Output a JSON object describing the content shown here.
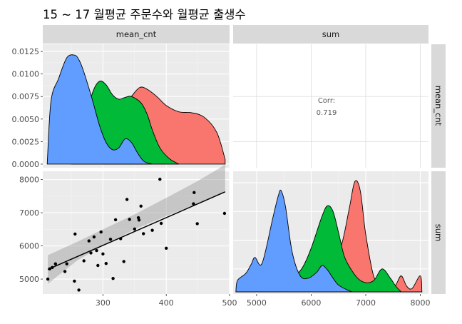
{
  "figure": {
    "title": "15 ~ 17 월평균 주문수와 월평균 출생수"
  },
  "chart_data": {
    "type": "scatter-matrix",
    "variables": [
      "mean_cnt",
      "sum"
    ],
    "fill_colors": {
      "red": "#F8766D",
      "green": "#00BA38",
      "blue": "#619CFF"
    },
    "panel_background": "#EBEBEB",
    "strip_background": "#D9D9D9",
    "grid": true,
    "density_mean_cnt": {
      "ylim": [
        -0.0004,
        0.0133
      ],
      "yticks": [
        "0.0000",
        "0.0025",
        "0.0050",
        "0.0075",
        "0.0100",
        "0.0125"
      ],
      "series": [
        {
          "color": "red",
          "x": [
            300,
            315,
            330,
            345,
            358,
            370,
            385,
            400,
            420,
            440,
            460,
            480,
            493
          ],
          "y": [
            0,
            0.003,
            0.006,
            0.0075,
            0.0085,
            0.0083,
            0.0075,
            0.0065,
            0.0058,
            0.0057,
            0.0052,
            0.0035,
            0.0005
          ]
        },
        {
          "color": "green",
          "x": [
            250,
            262,
            275,
            285,
            295,
            305,
            315,
            325,
            335,
            345,
            360,
            370,
            378,
            390,
            405,
            420
          ],
          "y": [
            0,
            0.0025,
            0.0058,
            0.0082,
            0.0092,
            0.0088,
            0.0077,
            0.0072,
            0.0074,
            0.0075,
            0.0068,
            0.0055,
            0.0038,
            0.0018,
            0.0006,
            0
          ]
        },
        {
          "color": "blue",
          "x": [
            212,
            218,
            230,
            243,
            255,
            262,
            270,
            283,
            295,
            305,
            315,
            325,
            335,
            345,
            355,
            365,
            378
          ],
          "y": [
            0,
            0.007,
            0.0095,
            0.0118,
            0.0121,
            0.0116,
            0.0102,
            0.0072,
            0.0042,
            0.0024,
            0.0016,
            0.0018,
            0.0028,
            0.0024,
            0.0012,
            0.0003,
            0
          ]
        }
      ]
    },
    "correlation": {
      "label": "Corr:",
      "value": "0.719"
    },
    "scatter": {
      "xlim": [
        205,
        500
      ],
      "ylim": [
        4550,
        8250
      ],
      "xticks": [
        300,
        400,
        500
      ],
      "yticks": [
        5000,
        6000,
        7000,
        8000
      ],
      "points": [
        [
          213,
          5000
        ],
        [
          216,
          5310
        ],
        [
          220,
          5350
        ],
        [
          225,
          5460
        ],
        [
          240,
          5230
        ],
        [
          243,
          5460
        ],
        [
          255,
          4940
        ],
        [
          256,
          6360
        ],
        [
          262,
          4670
        ],
        [
          270,
          5550
        ],
        [
          278,
          6150
        ],
        [
          281,
          5790
        ],
        [
          286,
          6270
        ],
        [
          290,
          5860
        ],
        [
          292,
          5410
        ],
        [
          297,
          6420
        ],
        [
          300,
          5760
        ],
        [
          305,
          5470
        ],
        [
          312,
          6200
        ],
        [
          316,
          5020
        ],
        [
          320,
          6790
        ],
        [
          328,
          6220
        ],
        [
          333,
          5530
        ],
        [
          338,
          7400
        ],
        [
          342,
          6800
        ],
        [
          350,
          6510
        ],
        [
          356,
          6850
        ],
        [
          357,
          6780
        ],
        [
          360,
          7200
        ],
        [
          364,
          6370
        ],
        [
          378,
          6470
        ],
        [
          390,
          8010
        ],
        [
          392,
          6680
        ],
        [
          400,
          5930
        ],
        [
          444,
          7610
        ],
        [
          443,
          7270
        ],
        [
          449,
          6670
        ],
        [
          492,
          6980
        ]
      ],
      "fit_line": {
        "x": [
          213,
          493
        ],
        "y": [
          5290,
          7630
        ]
      },
      "confidence_band": {
        "x": [
          213,
          260,
          300,
          350,
          400,
          450,
          493
        ],
        "upper": [
          5720,
          6130,
          6500,
          6950,
          7450,
          7960,
          8450
        ],
        "lower": [
          4860,
          5570,
          6010,
          6500,
          6900,
          7290,
          7620
        ]
      }
    },
    "density_sum": {
      "xlim": [
        4570,
        8150
      ],
      "xticks": [
        5000,
        6000,
        7000,
        8000
      ],
      "series": [
        {
          "color": "red",
          "x": [
            5800,
            6100,
            6350,
            6550,
            6700,
            6800,
            6900,
            7000,
            7150,
            7300,
            7450,
            7550,
            7650,
            7750,
            7850,
            8000,
            8030
          ],
          "y": [
            0,
            0.1,
            0.23,
            0.4,
            0.73,
            0.96,
            0.88,
            0.5,
            0.13,
            0.08,
            0.04,
            0.06,
            0.14,
            0.05,
            0.03,
            0.14,
            0
          ]
        },
        {
          "color": "green",
          "x": [
            5200,
            5550,
            5700,
            5850,
            6000,
            6200,
            6300,
            6400,
            6500,
            6600,
            6700,
            6850,
            7000,
            7150,
            7300,
            7450,
            7550,
            7650
          ],
          "y": [
            0,
            0.05,
            0.13,
            0.22,
            0.38,
            0.66,
            0.75,
            0.7,
            0.52,
            0.32,
            0.22,
            0.12,
            0.08,
            0.1,
            0.2,
            0.12,
            0.05,
            0
          ]
        },
        {
          "color": "blue",
          "x": [
            4620,
            4650,
            4800,
            4900,
            4970,
            5100,
            5300,
            5400,
            5450,
            5530,
            5650,
            5800,
            5950,
            6100,
            6200,
            6300,
            6400,
            6500,
            6650,
            6750
          ],
          "y": [
            0,
            0.1,
            0.16,
            0.24,
            0.3,
            0.25,
            0.65,
            0.84,
            0.88,
            0.74,
            0.35,
            0.14,
            0.12,
            0.17,
            0.23,
            0.19,
            0.12,
            0.06,
            0.02,
            0
          ]
        }
      ]
    }
  }
}
